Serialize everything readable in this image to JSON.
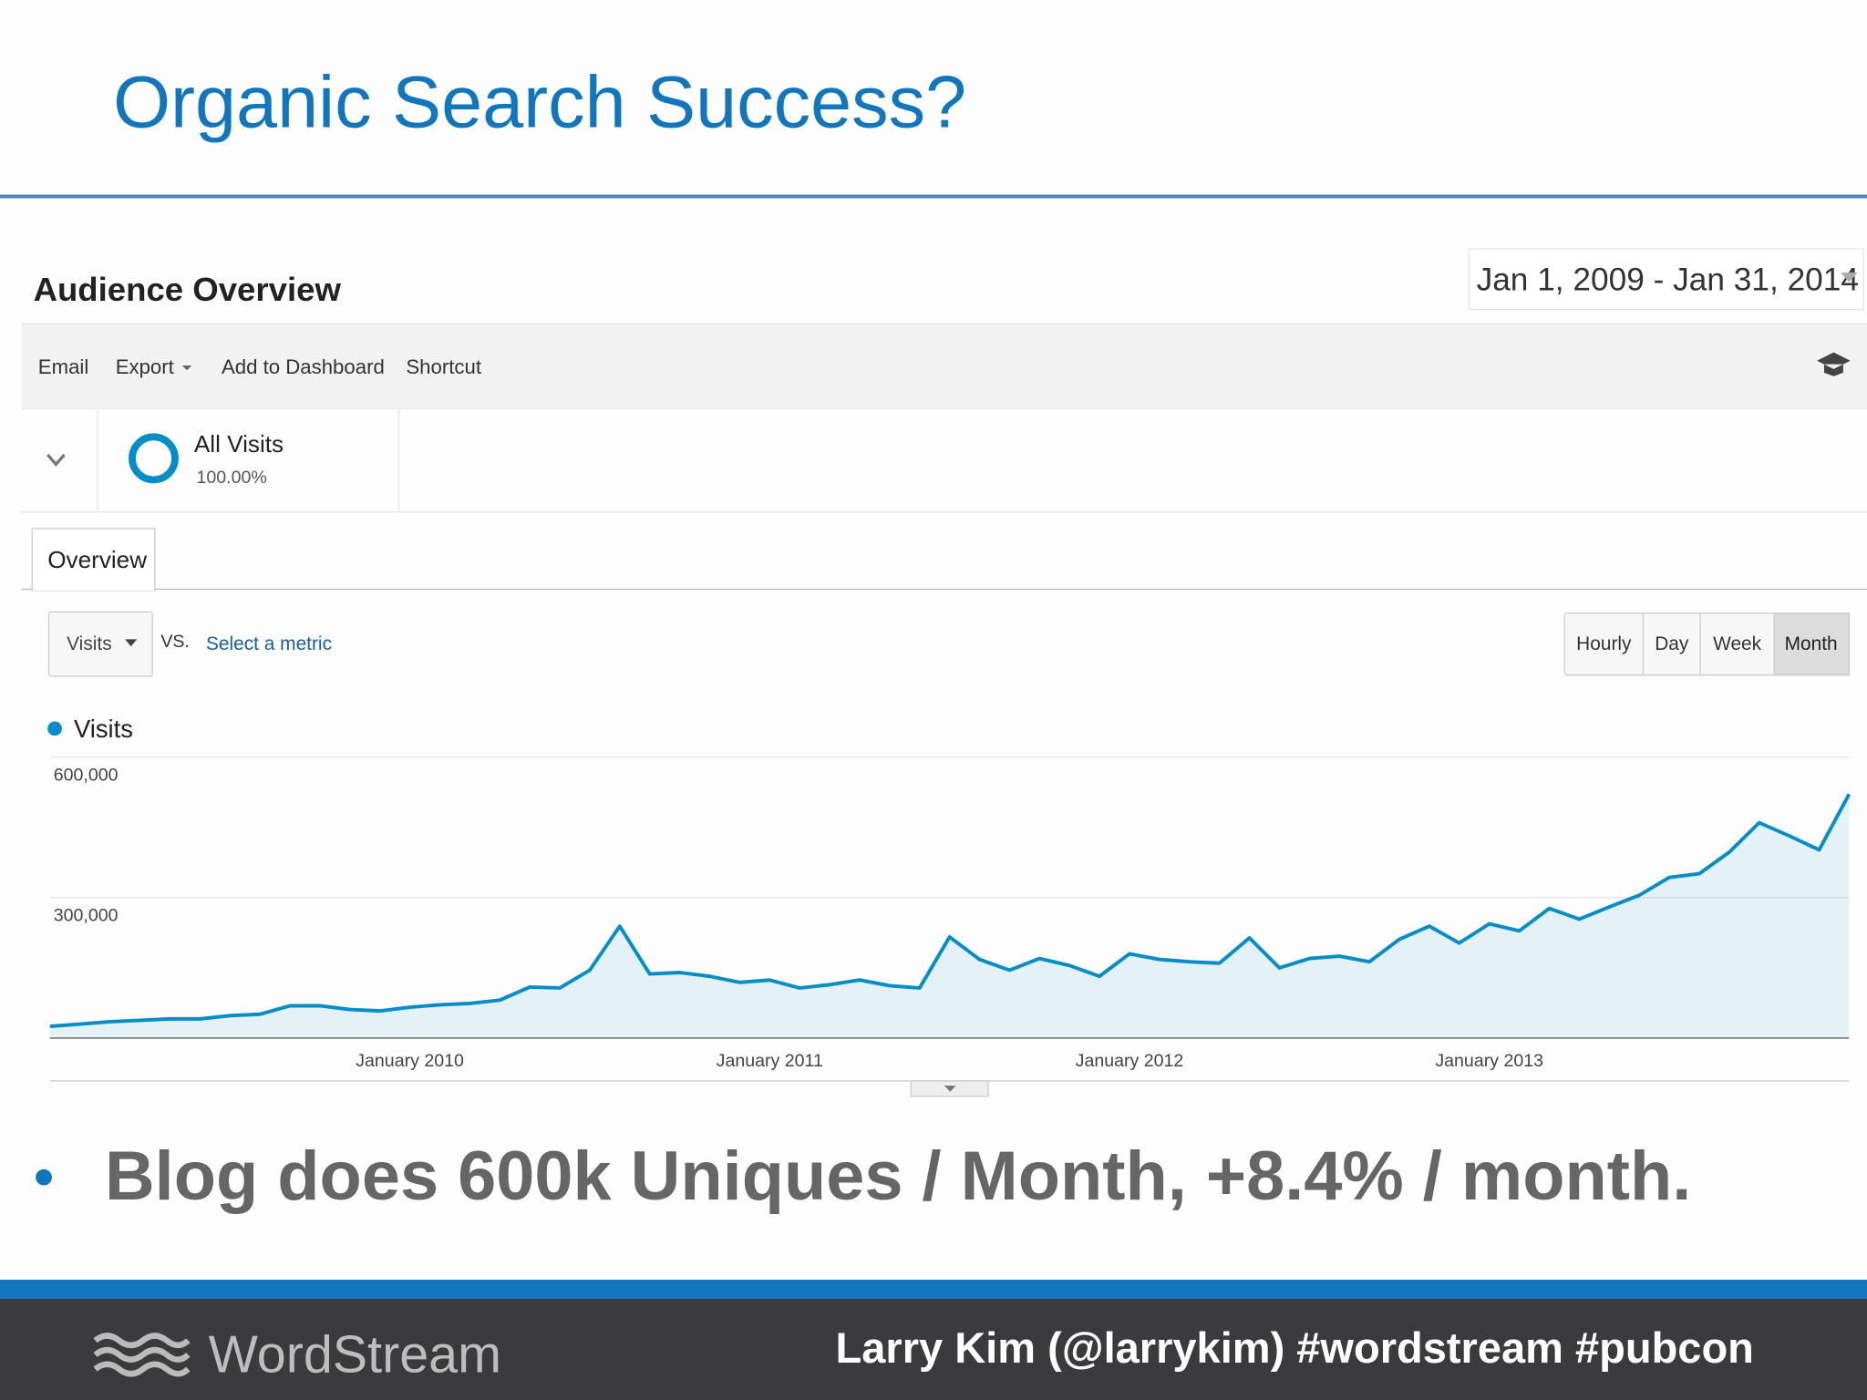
{
  "slide": {
    "title": "Organic Search Success?",
    "bullet": "Blog does 600k Uniques / Month, +8.4% / month.",
    "footer": {
      "logo": "WordStream",
      "credit": "Larry Kim (@larrykim) #wordstream #pubcon"
    }
  },
  "ui": {
    "heading": "Audience Overview",
    "date_range": "Jan 1, 2009 - Jan 31, 2014",
    "toolbar": [
      "Email",
      "Export",
      "Add to Dashboard",
      "Shortcut"
    ],
    "segment": {
      "name": "All Visits",
      "share": "100.00%"
    },
    "tab": "Overview",
    "metric": "Visits",
    "vs": "VS.",
    "select_metric": "Select a metric",
    "granularity": [
      "Hourly",
      "Day",
      "Week",
      "Month"
    ]
  },
  "chart_data": {
    "type": "line",
    "categories": [
      null,
      null,
      null,
      null,
      null,
      null,
      null,
      null,
      null,
      null,
      null,
      null,
      "January 2010",
      null,
      null,
      null,
      null,
      null,
      null,
      null,
      null,
      null,
      null,
      null,
      "January 2011",
      null,
      null,
      null,
      null,
      null,
      null,
      null,
      null,
      null,
      null,
      null,
      "January 2012",
      null,
      null,
      null,
      null,
      null,
      null,
      null,
      null,
      null,
      null,
      null,
      "January 2013",
      null,
      null,
      null,
      null,
      null,
      null,
      null,
      null,
      null,
      null,
      null,
      null
    ],
    "series": [
      {
        "name": "Visits",
        "color": "#058dc7",
        "values": [
          25000,
          30000,
          35000,
          38000,
          41000,
          41000,
          48000,
          51000,
          69000,
          69000,
          61000,
          58000,
          66000,
          71000,
          74000,
          81000,
          109000,
          107000,
          145000,
          239000,
          137000,
          140000,
          132000,
          119000,
          124000,
          107000,
          114000,
          124000,
          112000,
          107000,
          216000,
          168000,
          145000,
          170000,
          155000,
          132000,
          180000,
          168000,
          163000,
          160000,
          214000,
          150000,
          170000,
          175000,
          163000,
          211000,
          239000,
          203000,
          244000,
          229000,
          277000,
          254000,
          280000,
          305000,
          343000,
          351000,
          397000,
          460000,
          432000,
          402000,
          521000
        ]
      }
    ],
    "ylim": [
      0,
      600000
    ],
    "yticks": [
      {
        "value": 300000,
        "label": "300,000"
      },
      {
        "value": 600000,
        "label": "600,000"
      }
    ],
    "grid": true
  }
}
